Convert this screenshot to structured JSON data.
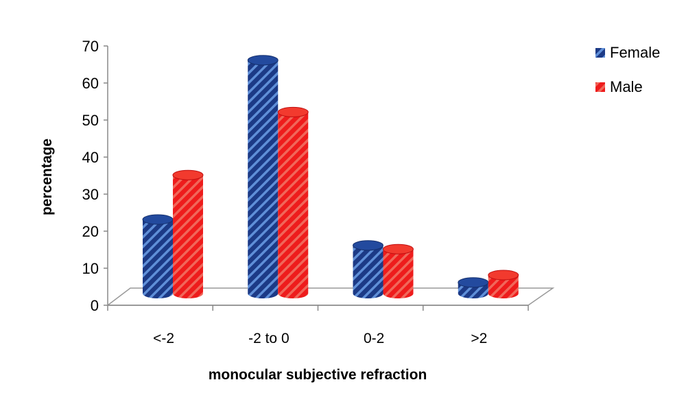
{
  "chart_data": {
    "type": "bar",
    "style": "3d-cylinder",
    "title": "",
    "xlabel": "monocular subjective refraction",
    "ylabel": "percentage",
    "categories": [
      "<-2",
      "-2 to 0",
      "0-2",
      ">2"
    ],
    "series": [
      {
        "name": "Female",
        "values": [
          20,
          63,
          13,
          3
        ],
        "color": "#1f3f8f"
      },
      {
        "name": "Male",
        "values": [
          32,
          49,
          12,
          5
        ],
        "color": "#e8141a"
      }
    ],
    "ylim": [
      0,
      70
    ],
    "yticks": [
      0,
      10,
      20,
      30,
      40,
      50,
      60,
      70
    ],
    "grid": false,
    "legend": "right"
  }
}
